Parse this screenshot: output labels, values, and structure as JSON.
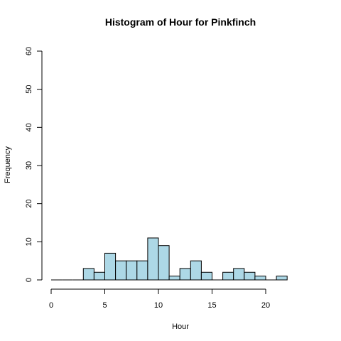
{
  "chart_data": {
    "type": "bar",
    "title": "Histogram of Hour for Pinkfinch",
    "xlabel": "Hour",
    "ylabel": "Frequency",
    "bar_color": "#add8e6",
    "xlim": [
      0,
      24
    ],
    "ylim": [
      0,
      60
    ],
    "x_ticks": [
      0,
      5,
      10,
      15,
      20
    ],
    "y_ticks": [
      0,
      10,
      20,
      30,
      40,
      50,
      60
    ],
    "bin_width": 1,
    "bins": [
      {
        "start": 0,
        "end": 1,
        "count": 0
      },
      {
        "start": 1,
        "end": 2,
        "count": 0
      },
      {
        "start": 2,
        "end": 3,
        "count": 0
      },
      {
        "start": 3,
        "end": 4,
        "count": 3
      },
      {
        "start": 4,
        "end": 5,
        "count": 2
      },
      {
        "start": 5,
        "end": 6,
        "count": 7
      },
      {
        "start": 6,
        "end": 7,
        "count": 5
      },
      {
        "start": 7,
        "end": 8,
        "count": 5
      },
      {
        "start": 8,
        "end": 9,
        "count": 5
      },
      {
        "start": 9,
        "end": 10,
        "count": 11
      },
      {
        "start": 10,
        "end": 11,
        "count": 9
      },
      {
        "start": 11,
        "end": 12,
        "count": 1
      },
      {
        "start": 12,
        "end": 13,
        "count": 3
      },
      {
        "start": 13,
        "end": 14,
        "count": 5
      },
      {
        "start": 14,
        "end": 15,
        "count": 2
      },
      {
        "start": 15,
        "end": 16,
        "count": 0
      },
      {
        "start": 16,
        "end": 17,
        "count": 2
      },
      {
        "start": 17,
        "end": 18,
        "count": 3
      },
      {
        "start": 18,
        "end": 19,
        "count": 2
      },
      {
        "start": 19,
        "end": 20,
        "count": 1
      },
      {
        "start": 20,
        "end": 21,
        "count": 0
      },
      {
        "start": 21,
        "end": 22,
        "count": 1
      }
    ]
  }
}
